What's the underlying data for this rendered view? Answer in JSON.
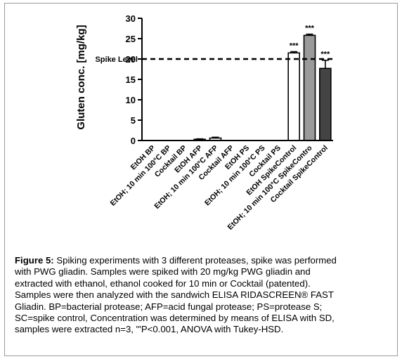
{
  "chart_data": {
    "type": "bar",
    "ylabel": "Gluten conc. [mg/kg]",
    "ylim": [
      0,
      30
    ],
    "yticks": [
      0,
      5,
      10,
      15,
      20,
      25,
      30
    ],
    "reference_line": {
      "label": "Spike Level",
      "value": 20,
      "style": "dashed"
    },
    "categories": [
      "EtOH BP",
      "EtOH; 10 min 100°C  BP",
      "Cocktail BP",
      "EtOH AFP",
      "EtOH; 10 min 100°C AFP",
      "Cocktail AFP",
      "EtOH PS",
      "EtOH; 10 min 100°C PS",
      "Cocktail PS",
      "EtOH SpikeControl",
      "EtOH; 10 min 100°C SpikeContro",
      "Cocktail SpikeControl"
    ],
    "values": [
      0,
      0,
      0,
      0.3,
      0.6,
      0,
      0,
      0,
      0,
      21.5,
      25.8,
      17.7
    ],
    "errors": [
      0,
      0,
      0,
      0.1,
      0.2,
      0,
      0,
      0,
      0,
      0.3,
      0.3,
      2.0
    ],
    "fills": [
      "#ffffff",
      "#ffffff",
      "#ffffff",
      "#ffffff",
      "#ffffff",
      "#ffffff",
      "#ffffff",
      "#ffffff",
      "#ffffff",
      "#ffffff",
      "#9a9a9a",
      "#444444"
    ],
    "significance": [
      "",
      "",
      "",
      "",
      "",
      "",
      "",
      "",
      "",
      "***",
      "***",
      "***"
    ],
    "grid": false,
    "legend": "none"
  },
  "caption": {
    "label": "Figure 5:",
    "lines": [
      " Spiking experiments with 3 different proteases, spike was performed",
      "with PWG gliadin. Samples were spiked with 20 mg/kg PWG gliadin and",
      "extracted with ethanol, ethanol cooked for 10 min or Cocktail (patented).",
      "Samples were then analyzed with the sandwich ELISA RIDASCREEN® FAST",
      "Gliadin. BP=bacterial protease; AFP=acid fungal protease; PS=protease S;",
      "SC=spike control, Concentration was determined by means of ELISA with SD,",
      "samples were extracted n=3, \"'P<0.001, ANOVA with Tukey-HSD."
    ]
  }
}
